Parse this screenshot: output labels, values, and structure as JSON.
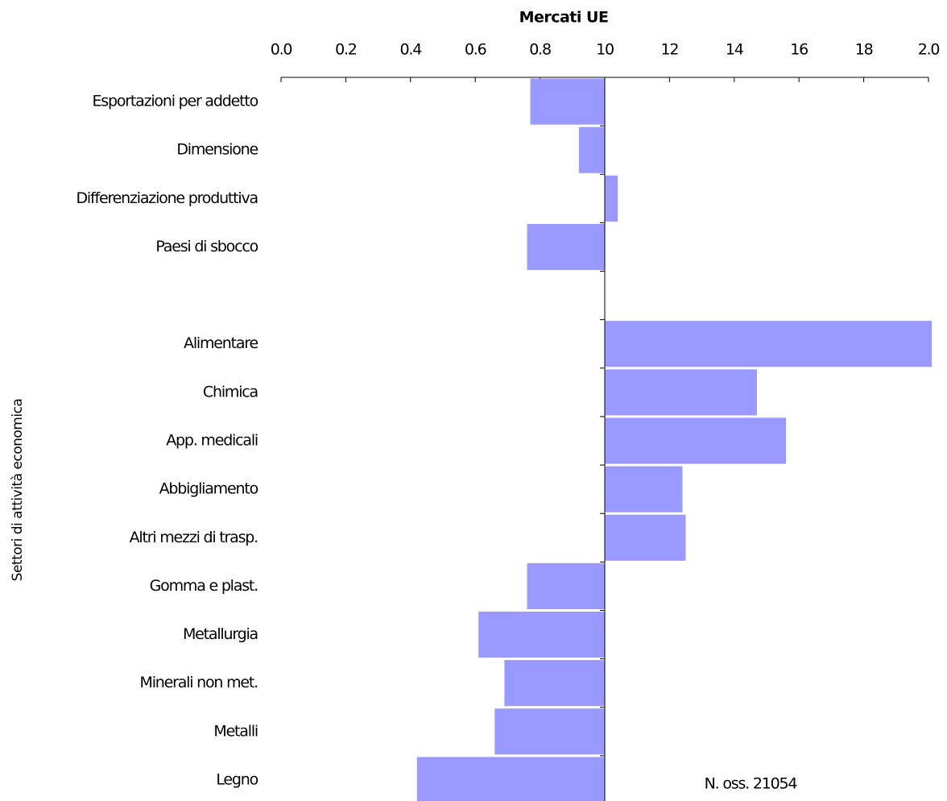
{
  "chart_data": {
    "type": "bar",
    "orientation": "horizontal",
    "title": "Mercati UE",
    "y_label": "Settori di attività economica",
    "annotation": "N. oss. 21054",
    "categories": [
      "Esportazioni per addetto",
      "Dimensione",
      "Differenziazione produttiva",
      "Paesi di sbocco",
      null,
      "Alimentare",
      "Chimica",
      "App. medicali",
      "Abbigliamento",
      "Altri mezzi di trasp.",
      "Gomma e plast.",
      "Metallurgia",
      "Minerali non met.",
      "Metalli",
      "Legno"
    ],
    "values": [
      0.77,
      0.92,
      1.04,
      0.76,
      null,
      2.01,
      1.47,
      1.56,
      1.24,
      1.25,
      0.76,
      0.61,
      0.69,
      0.66,
      0.42
    ],
    "baseline": 1,
    "color": "#9999ff",
    "xlim": [
      0,
      2
    ],
    "xticks": [
      {
        "value": 0,
        "label": "0.0"
      },
      0.2,
      0.4,
      0.6,
      0.8,
      {
        "value": 1.0,
        "label": "10"
      },
      {
        "value": 1.2,
        "label": "12"
      },
      {
        "value": 1.4,
        "label": "14"
      },
      {
        "value": 1.6,
        "label": "16"
      },
      {
        "value": 1.8,
        "label": "18"
      },
      {
        "value": 2,
        "label": "2.0"
      }
    ]
  }
}
